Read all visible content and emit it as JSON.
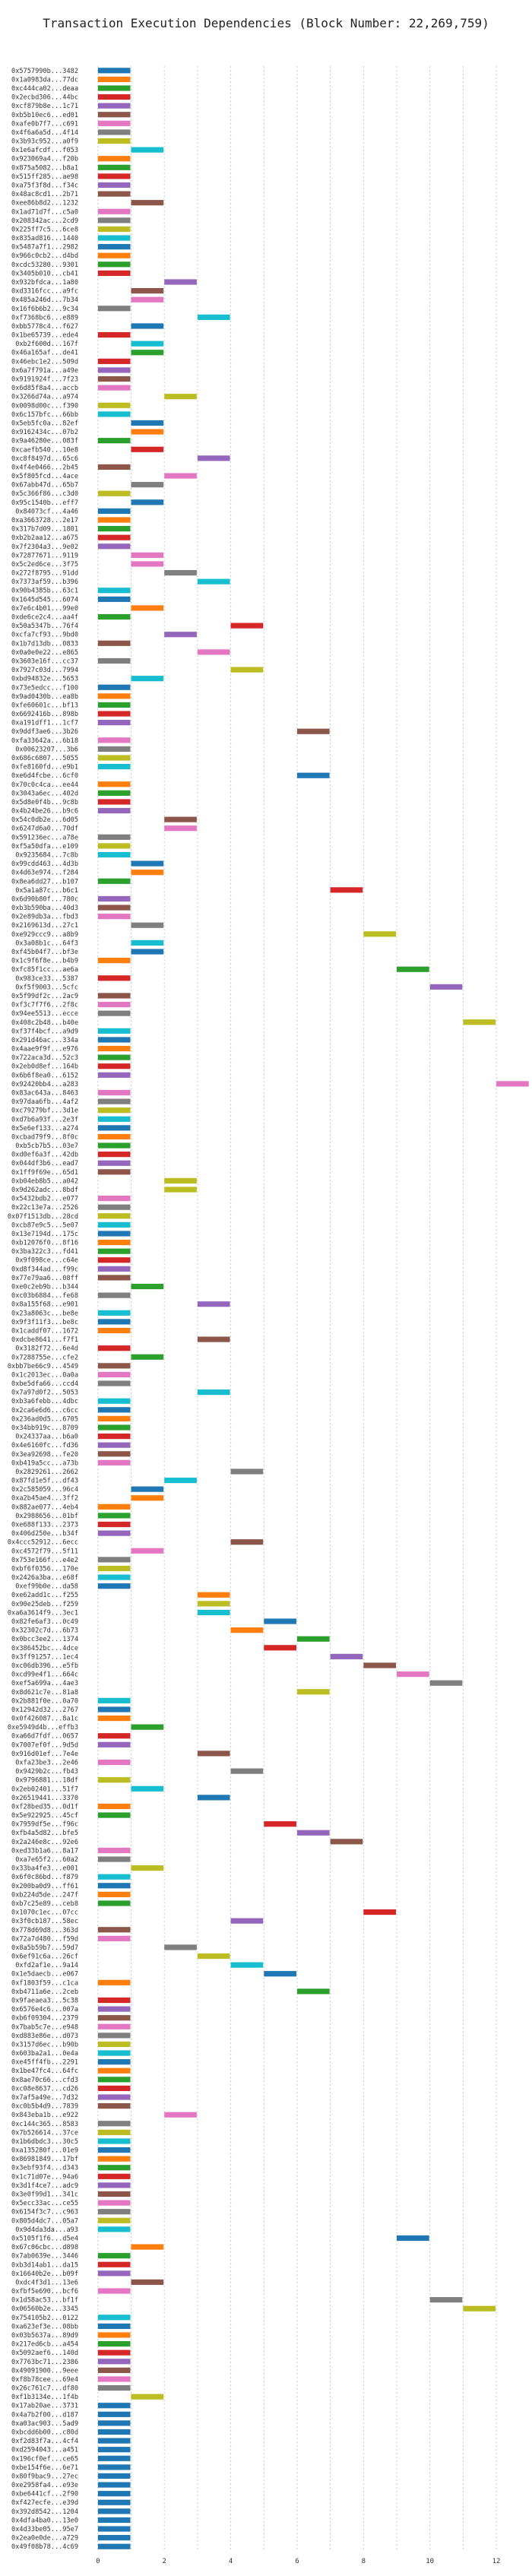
{
  "chart_data": {
    "type": "bar",
    "orientation": "horizontal",
    "title": "Transaction Execution Dependencies (Block Number: 22,269,759)",
    "xlabel": "",
    "ylabel": "",
    "xlim": [
      -0.5,
      12.8
    ],
    "xticks": [
      0,
      2,
      4,
      6,
      8,
      10,
      12
    ],
    "grid": true,
    "bar_width": 1,
    "palette": {
      "blue": "#1f77b4",
      "orange": "#ff7f0e",
      "green": "#2ca02c",
      "red": "#d62728",
      "purple": "#9467bd",
      "brown": "#8c564b",
      "pink": "#e377c2",
      "gray": "#7f7f7f",
      "olive": "#bcbd22",
      "cyan": "#17becf"
    },
    "colors_cycle": [
      "#1f77b4",
      "#ff7f0e",
      "#2ca02c",
      "#d62728",
      "#9467bd",
      "#8c564b",
      "#e377c2",
      "#7f7f7f",
      "#bcbd22",
      "#17becf"
    ],
    "transactions": [
      "0x5757990b...3482",
      "0x1a0983da...77dc",
      "0xc444ca02...deaa",
      "0x2ecbd306...44bc",
      "0xcf879b8e...1c71",
      "0xb5b10ec6...ed01",
      "0xafe0b7f7...c691",
      "0x4f6a6a5d...4f14",
      "0x3b93c952...a0f9",
      "0x1e6afcdf...f053",
      "0x923069a4...f20b",
      "0x875a5082...b8a1",
      "0x515ff285...ae98",
      "0xa75f3f8d...f34c",
      "0x48ac8cd1...2b71",
      "0xee86b8d2...1232",
      "0x1ad71d7f...c5a0",
      "0x208342ac...2cd9",
      "0x225ff7c5...6ce8",
      "0x835ad816...1440",
      "0x5487a7f1...2982",
      "0x966c0cb2...d4bd",
      "0xcdc53280...9301",
      "0x3405b010...cb41",
      "0x932bfdca...1a80",
      "0xd3316fcc...a9fc",
      "0x485a246d...7b34",
      "0x16f6b6b2...9c34",
      "0xf7368bc6...e889",
      "0xbb5778c4...f627",
      "0x1be65739...ede4",
      "0xb2f600d...167f",
      "0x46a165af...de41",
      "0x46ebc1e2...509d",
      "0x6a7f791a...a49e",
      "0x9191924f...7f23",
      "0x6d85f8a4...accb",
      "0x3266d74a...a974",
      "0x0098d00c...f390",
      "0x6c157bfc...66bb",
      "0x5eb5fc0a...82ef",
      "0x9162434c...07b2",
      "0x9a46280e...083f",
      "0xcaefb540...10e8",
      "0xc8f8497d...65c6",
      "0x4f4e0466...2b45",
      "0x5f805fcd...4ace",
      "0x67abb47d...65b7",
      "0x5c366f86...c3d0",
      "0x95c1540b...eff7",
      "0x84073cf...4a46",
      "0xa3663728...2e17",
      "0x317b7d09...1801",
      "0xb2b2aa12...a675",
      "0x7f2304a3...9e02",
      "0x72877671...9119",
      "0x5c2ed6ce...3f75",
      "0x272f8795...91dd",
      "0x7373af59...b396",
      "0x90b4385b...63c1",
      "0x1645d545...6074",
      "0x7e6c4b01...99e0",
      "0xde6ce2c4...aa4f",
      "0x50a5347b...76f4",
      "0xcfa7cf93...9bd0",
      "0x1b7d13db...0833",
      "0x0a0e0e22...e865",
      "0x3603e16f...cc37",
      "0x7927c03d...7994",
      "0xbd94832e...5653",
      "0x73e5edcc...f100",
      "0x9ad0430b...ea8b",
      "0xfe60601c...bf13",
      "0x6692416b...898b",
      "0xa191dff1...1cf7",
      "0x9ddf3ae6...3b26",
      "0xfa33642a...6b18",
      "0x00623207...3b6",
      "0x686c6807...5055",
      "0xfe8160fd...e9b1",
      "0xe6d4fcbe...6cf0",
      "0x70c0c4ca...ee44",
      "0x3043a6ec...402d",
      "0x5d8e0f4b...9c8b",
      "0x4b24be26...b9c6",
      "0x54c0db2e...6d05",
      "0x6247d6a0...70df",
      "0x591236ec...a78e",
      "0xf5a50dfa...e109",
      "0x9235684...7c8b",
      "0x99cdd463...4d3b",
      "0x4d63e974...f284",
      "0x8ea6dd27...b107",
      "0x5a1a87c...b6c1",
      "0x6d90b80f...780c",
      "0xb3b590ba...40d3",
      "0x2e89db3a...fbd3",
      "0x2169613d...27c1",
      "0xe929ccc9...a8b9",
      "0x3a08b1c...64f3",
      "0xf45b04f7...bf3e",
      "0x1c9f6f8e...b4b9",
      "0xfc85f1cc...ae6a",
      "0x983ce33...5387",
      "0xf5f9003...5cfc",
      "0x5f99df2c...2ac9",
      "0xf3c7f7f6...2f8c",
      "0x94ee5513...ecce",
      "0x408c2b48...b40e",
      "0xf37f4bcf...a9d9",
      "0x291d46ac...334a",
      "0x4aae9f9f...e976",
      "0x722aca3d...52c3",
      "0x2eb0d8ef...164b",
      "0x6b6f8ea0...6152",
      "0x92420bb4...a283",
      "0x83ac643a...8463",
      "0x97daa6fb...4af2",
      "0xc79279bf...3d1e",
      "0xd7b6a93f...2e3f",
      "0x5e6ef133...a274",
      "0xcbad79f9...8f0c",
      "0xb5cb7b5...03e7",
      "0xd0ef6a3f...42db",
      "0x044df3b6...ead7",
      "0x1ff9f69e...65d1",
      "0xb04eb8b5...a042",
      "0x9d262adc...8bdf",
      "0x5432bdb2...e077",
      "0x22c13e7a...2526",
      "0x07f1513db...28cd",
      "0xcb87e9c5...5e07",
      "0x13e7194d...175c",
      "0xb12076f0...8f16",
      "0x3ba322c3...fd41",
      "0x9f098ce...c64e",
      "0xd8f344ad...f99c",
      "0x77e79aa6...08ff",
      "0xe0c2eb9b...b344",
      "0xc03b6884...fe68",
      "0x8a155f68...e901",
      "0x23a8063c...be8e",
      "0x9f3f11f3...be8c",
      "0x1caddf07...1672",
      "0xdcbe8641...f7f1",
      "0x3182f72...6e4d",
      "0x7288755e...cfe2",
      "0xbb7be66c9...4549",
      "0x1c2013ec...0a0a",
      "0xbe5dfa66...ccd4",
      "0x7a97d0f2...5053",
      "0xb3a6febb...4dbc",
      "0x2ca6e6d6...c6cc",
      "0x236ad0d5...6705",
      "0x34bb919c...8709",
      "0x24337aa...b6a0",
      "0x4e6160fc...fd36",
      "0x3ea92698...fe20",
      "0xb419a5cc...a73b",
      "0x2829261...2662",
      "0x87fd1e5f...df43",
      "0x2c585059...96c4",
      "0xa2b45ae4...3ff2",
      "0x882ae077...4eb4",
      "0x2988656...01bf",
      "0xe688f133...2373",
      "0x406d250e...b34f",
      "0x4ccc52912...6ecc",
      "0xc4572f79...5f11",
      "0x753e166f...e4e2",
      "0xbf6f0356...170e",
      "0x2426a3ba...e68f",
      "0xef99b0e...da58",
      "0xe62add1c...f255",
      "0x90e25deb...f259",
      "0xa6a3614f9...3ec1",
      "0x82fe6af3...0c49",
      "0x32302c7d...6b73",
      "0x0bcc3ee2...1374",
      "0x386452bc...4dce",
      "0x3ff91257...1ec4",
      "0xc06db396...e5fb",
      "0xcd99e4f1...664c",
      "0xef5a699a...4ae3",
      "0x8d621c7e...81a8",
      "0x2b881f0e...0a70",
      "0x12942d32...2767",
      "0x0f426087...8a1c",
      "0xe5949d4b...effb3",
      "0xa66d7fdf...0657",
      "0x7007ef0f...9d5d",
      "0x916d01ef...7e4e",
      "0xfa23be3...2e46",
      "0x9429b2c...fb43",
      "0x9796881...18df",
      "0x2eb02401...51f7",
      "0x26519441...3370",
      "0xf28bed35...0d1f",
      "0x5e922925...45cf",
      "0x7959df5e...f96c",
      "0xfb4a5d82...bfe5",
      "0x2a246e8c...92e6",
      "0xed33b1a6...8a17",
      "0xa7e65f2...60a2",
      "0x33ba4fe3...e001",
      "0x6f0c86bd...f879",
      "0x200ba0d9...ff61",
      "0xb224d5de...247f",
      "0xb7c25e89...ceb8",
      "0x1070c1ec...07cc",
      "0x3f0cb187...58ec",
      "0x778d69d8...363d",
      "0x72a7d480...f59d",
      "0x8a5b59b7...59d7",
      "0x6ef91c6a...26cf",
      "0xfd2af1e...9a14",
      "0x1e5daecb...e067",
      "0xf1803f59...c1ca",
      "0xb4711a6e...2ceb",
      "0x9faeaea3...5c38",
      "0x6576e4c6...007a",
      "0xb6f09304...2379",
      "0x7bab5c7e...e948",
      "0xd883e86e...d073",
      "0x3157d6ec...b90b",
      "0x603ba2a1...0e4a",
      "0xe45ff4fb...2291",
      "0x1be47fc4...64fc",
      "0x8ae70c66...cfd3",
      "0xc08e8637...cd26",
      "0x7af5a49e...7d32",
      "0xc0b5b4d9...7839",
      "0x843eba1b...e922",
      "0xc144c365...8583",
      "0x7b526614...37ce",
      "0x1b6dbdc3...30c5",
      "0xa135280f...01e9",
      "0x86981849...17bf",
      "0x3ebf93f4...d343",
      "0x1c71d07e...94a6",
      "0x3d1f4ce7...adc9",
      "0x3e0f99d1...341c",
      "0x5ecc33ac...ce55",
      "0x6154f3c7...c963",
      "0x805d4dc7...05a7",
      "0x9d4da3da...a93",
      "0x5105f1f6...d5e4",
      "0x67c06cbc...d898",
      "0x7ab0639e...3446",
      "0xb3d14ab1...da15",
      "0x16640b2e...b09f",
      "0xdc4f3d1...13e6",
      "0xfbf5e690...bcf6",
      "0x1d58ac53...bf1f",
      "0x06560b2e...3345",
      "0x754105b2...0122",
      "0xa623ef3e...08bb",
      "0x03b5637a...89d9",
      "0x217ed6cb...a454",
      "0x5092aef6...140d",
      "0x7763bc71...2386",
      "0x49091900...9eee",
      "0xf8b78cee...69e4",
      "0x26c761c7...df80",
      "0xf1b3134e...1f4b",
      "0x17ab20ae...3731",
      "0x4a7b2f00...d187",
      "0xa03ac903...5ad9",
      "0xbcdd6b00...c80d",
      "0xf2d83f7a...4cf4",
      "0xd2594043...a451",
      "0x196cf0ef...ce65",
      "0xbe154f6e...6e71",
      "0x80f9bac9...27ec",
      "0xe2958fa4...e93e",
      "0xbe6441cf...2f90",
      "0xf427ecfe...e39d",
      "0x392d8542...1204",
      "0x4dfa4ba0...13e0",
      "0x4d33be05...95e7",
      "0x2ea0e0de...a729",
      "0x49f08b78...4c69"
    ],
    "starts": [
      0,
      0,
      0,
      0,
      0,
      0,
      0,
      0,
      0,
      1,
      0,
      0,
      0,
      0,
      0,
      1,
      0,
      0,
      0,
      0,
      0,
      0,
      0,
      0,
      2,
      1,
      1,
      0,
      3,
      1,
      0,
      1,
      1,
      0,
      0,
      0,
      0,
      2,
      0,
      0,
      1,
      1,
      0,
      1,
      3,
      0,
      2,
      1,
      0,
      1,
      0,
      0,
      0,
      0,
      0,
      1,
      1,
      2,
      3,
      0,
      0,
      1,
      0,
      4,
      2,
      0,
      3,
      0,
      4,
      1,
      0,
      0,
      0,
      0,
      0,
      6,
      0,
      0,
      0,
      0,
      6,
      0,
      0,
      0,
      0,
      2,
      2,
      0,
      0,
      0,
      1,
      1,
      0,
      7,
      0,
      0,
      0,
      1,
      8,
      1,
      1,
      0,
      9,
      0,
      10,
      0,
      0,
      0,
      11,
      0,
      0,
      0,
      0,
      0,
      0,
      12,
      0,
      0,
      0,
      0,
      0,
      0,
      0,
      0,
      0,
      0,
      2,
      2,
      0,
      0,
      0,
      0,
      0,
      0,
      0,
      0,
      0,
      0,
      1,
      0,
      3,
      0,
      0,
      0,
      3,
      0,
      1,
      0,
      0,
      0,
      3,
      0,
      0,
      0,
      0,
      0,
      0,
      0,
      0,
      4,
      2,
      1,
      1,
      0,
      0,
      0,
      0,
      4,
      1,
      0,
      0,
      0,
      0,
      3,
      3,
      3,
      5,
      4,
      6,
      5,
      7,
      8,
      9,
      10,
      6,
      0,
      0,
      0,
      1,
      0,
      0,
      3,
      0,
      4,
      0,
      1,
      3,
      0,
      0,
      5,
      6,
      7,
      0,
      0,
      1,
      0,
      0,
      0,
      0,
      8,
      4,
      0,
      0,
      2,
      3,
      4,
      5,
      0,
      6,
      0,
      0,
      0,
      0,
      0,
      0,
      0,
      0,
      0,
      0,
      0,
      0,
      0,
      2,
      0,
      0,
      0,
      0,
      0,
      0,
      0,
      0,
      0,
      0,
      0,
      0,
      0,
      9,
      1,
      0,
      0,
      0,
      1,
      0,
      10,
      11,
      0,
      0,
      0,
      0,
      0,
      0,
      0,
      0,
      0,
      1,
      0,
      0
    ],
    "color_index": [
      0,
      1,
      2,
      3,
      4,
      5,
      6,
      7,
      8,
      9,
      1,
      2,
      3,
      4,
      5,
      5,
      6,
      7,
      8,
      9,
      0,
      1,
      2,
      3,
      4,
      5,
      6,
      7,
      9,
      0,
      3,
      9,
      2,
      3,
      4,
      5,
      6,
      8,
      8,
      9,
      0,
      1,
      2,
      3,
      4,
      5,
      6,
      7,
      8,
      0,
      0,
      1,
      2,
      3,
      4,
      6,
      6,
      7,
      9,
      9,
      0,
      1,
      2,
      3,
      4,
      5,
      6,
      7,
      8,
      9,
      0,
      1,
      2,
      3,
      4,
      5,
      6,
      7,
      8,
      9,
      0,
      1,
      2,
      3,
      4,
      5,
      6,
      7,
      8,
      9,
      0,
      1,
      2,
      3,
      4,
      5,
      6,
      7,
      8,
      9,
      0,
      1,
      2,
      3,
      4,
      5,
      6,
      7,
      8,
      9,
      0,
      1,
      2,
      3,
      4,
      6,
      6,
      7,
      8,
      9,
      0,
      1,
      2,
      3,
      4,
      5,
      8,
      8,
      6,
      7,
      8,
      9,
      0,
      1,
      2,
      3,
      4,
      5,
      2,
      7,
      4,
      9,
      0,
      1,
      5,
      3,
      2,
      5,
      6,
      7,
      9,
      9,
      0,
      1,
      2,
      3,
      4,
      5,
      6,
      7,
      9,
      0,
      1,
      1,
      2,
      3,
      4,
      5,
      6,
      7,
      8,
      9,
      0,
      1,
      8,
      9,
      0,
      1,
      2,
      3,
      4,
      5,
      6,
      7,
      8,
      9,
      0,
      1,
      2,
      3,
      4,
      5,
      6,
      7,
      8,
      9,
      0,
      1,
      2,
      3,
      4,
      5,
      6,
      7,
      8,
      9,
      0,
      1,
      2,
      3,
      4,
      5,
      6,
      7,
      8,
      9,
      0,
      1,
      2,
      3,
      4,
      5,
      6,
      7,
      8,
      9,
      0,
      1,
      2,
      3,
      4,
      5,
      6,
      7,
      8,
      9,
      0,
      1,
      2,
      3,
      4,
      5,
      6,
      7,
      8,
      9,
      0,
      1,
      2,
      3,
      4,
      5,
      6,
      7,
      8,
      9,
      0,
      1,
      2,
      3,
      4,
      5,
      6,
      7,
      8
    ]
  }
}
